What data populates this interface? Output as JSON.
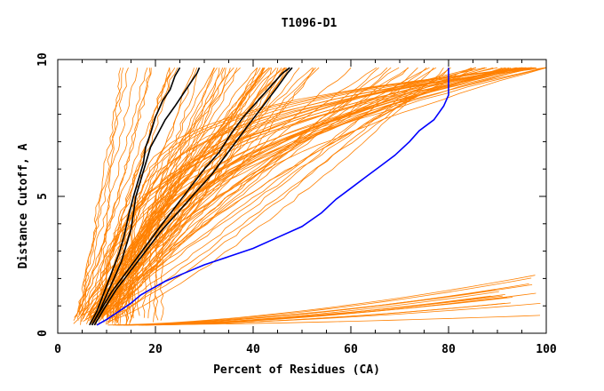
{
  "chart_data": {
    "type": "line",
    "title": "T1096-D1",
    "xlabel": "Percent of Residues (CA)",
    "ylabel": "Distance Cutoff, A",
    "xlim": [
      0,
      100
    ],
    "ylim": [
      0,
      10
    ],
    "xticks": [
      0,
      20,
      40,
      60,
      80,
      100
    ],
    "yticks": [
      0,
      5,
      10
    ],
    "grid": false,
    "background_series_color": "#ff8000",
    "highlighted_series": [
      {
        "name": "black-1",
        "color": "#000000",
        "x": [
          6.5,
          8,
          9.5,
          11,
          12.5,
          13.5,
          14.5,
          15.5,
          16.5,
          17.5,
          18,
          19,
          20,
          21.5,
          23,
          24,
          25
        ],
        "y": [
          0.3,
          0.8,
          1.5,
          2.2,
          2.9,
          3.5,
          4.3,
          5.0,
          5.6,
          6.2,
          6.8,
          7.3,
          7.9,
          8.5,
          8.9,
          9.4,
          9.7
        ]
      },
      {
        "name": "black-2",
        "color": "#000000",
        "x": [
          7,
          8.5,
          10,
          11.5,
          13,
          14,
          15,
          15.5,
          16,
          17,
          18,
          19,
          20.5,
          22,
          24,
          25.5,
          27,
          28.5,
          29
        ],
        "y": [
          0.3,
          0.8,
          1.4,
          2.0,
          2.6,
          3.2,
          3.8,
          4.4,
          5.0,
          5.6,
          6.2,
          6.8,
          7.3,
          7.8,
          8.3,
          8.7,
          9.1,
          9.5,
          9.7
        ]
      },
      {
        "name": "black-3",
        "color": "#000000",
        "x": [
          7,
          9,
          11,
          13.5,
          16,
          18.5,
          21,
          24,
          27,
          30,
          33,
          35.5,
          38,
          41,
          44,
          46,
          47.5
        ],
        "y": [
          0.3,
          0.9,
          1.5,
          2.1,
          2.7,
          3.3,
          3.9,
          4.6,
          5.3,
          6.0,
          6.6,
          7.3,
          7.9,
          8.5,
          9.1,
          9.5,
          9.7
        ]
      },
      {
        "name": "black-4",
        "color": "#000000",
        "x": [
          7.5,
          9.5,
          12,
          15,
          18,
          21,
          24.5,
          28,
          31.5,
          34,
          36.5,
          39,
          42,
          45,
          47,
          48
        ],
        "y": [
          0.3,
          0.9,
          1.6,
          2.3,
          3.0,
          3.7,
          4.4,
          5.1,
          5.8,
          6.4,
          7.0,
          7.6,
          8.3,
          9.0,
          9.5,
          9.7
        ]
      },
      {
        "name": "blue",
        "color": "#0000ff",
        "x": [
          8,
          10,
          12.5,
          15,
          17,
          19,
          22,
          26,
          30,
          35,
          40,
          45,
          50,
          54,
          57,
          60,
          63,
          66,
          69,
          72,
          74,
          77,
          79,
          80,
          80
        ],
        "y": [
          0.3,
          0.5,
          0.8,
          1.1,
          1.4,
          1.6,
          1.9,
          2.2,
          2.5,
          2.8,
          3.1,
          3.5,
          3.9,
          4.4,
          4.9,
          5.3,
          5.7,
          6.1,
          6.5,
          7.0,
          7.4,
          7.8,
          8.3,
          8.7,
          9.7
        ]
      }
    ]
  }
}
